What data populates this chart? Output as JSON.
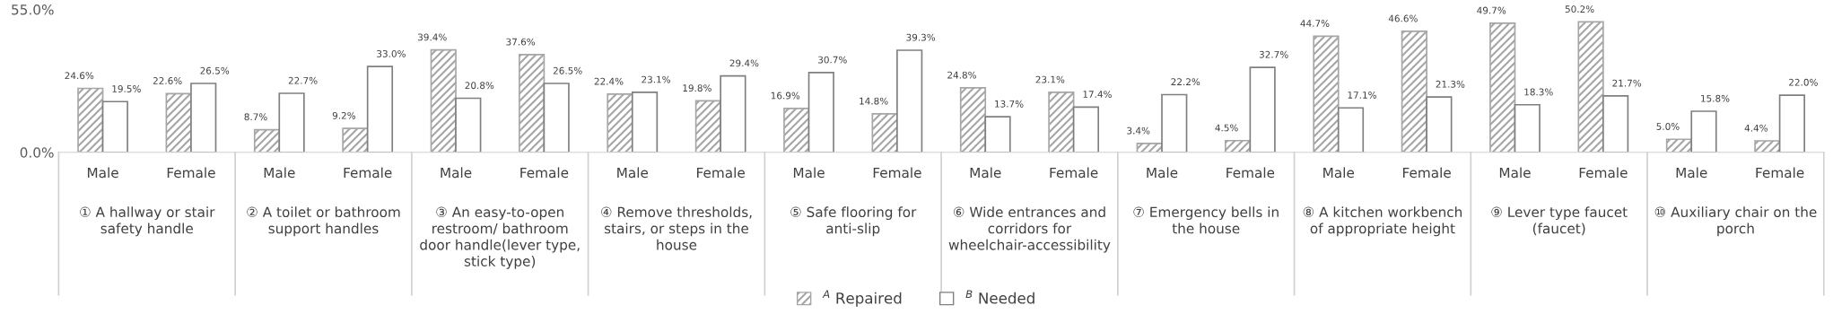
{
  "chart_data": {
    "type": "bar",
    "categories": [
      "Male",
      "Female",
      "Male",
      "Female",
      "Male",
      "Female",
      "Male",
      "Female",
      "Male",
      "Female",
      "Male",
      "Female",
      "Male",
      "Female",
      "Male",
      "Female",
      "Male",
      "Female",
      "Male",
      "Female"
    ],
    "series": [
      {
        "name": "$^{A}$ Repaired",
        "color": "#a6a6a6",
        "values": [
          24.6,
          22.6,
          8.7,
          9.2,
          39.4,
          37.6,
          22.4,
          19.8,
          16.9,
          14.8,
          24.8,
          23.1,
          3.4,
          4.5,
          44.7,
          46.6,
          49.7,
          50.2,
          5.0,
          4.4
        ],
        "value_labels": [
          "24.6%",
          "22.6%",
          "8.7%",
          "9.2%",
          "39.4%",
          "37.6%",
          "22.4%",
          "19.8%",
          "16.9%",
          "14.8%",
          "24.8%",
          "23.1%",
          "3.4%",
          "4.5%",
          "44.7%",
          "46.6%",
          "49.7%",
          "50.2%",
          "5.0%",
          "4.4%"
        ]
      },
      {
        "name": "$^{B}$ Needed",
        "color": "#ffffff",
        "values": [
          19.5,
          26.5,
          22.7,
          33.0,
          20.8,
          26.5,
          23.1,
          29.4,
          30.7,
          39.3,
          13.7,
          17.4,
          22.2,
          32.7,
          17.1,
          21.3,
          18.3,
          21.7,
          15.8,
          22.0
        ],
        "value_labels": [
          "19.5%",
          "26.5%",
          "22.7%",
          "33.0%",
          "20.8%",
          "26.5%",
          "23.1%",
          "29.4%",
          "30.7%",
          "39.3%",
          "13.7%",
          "17.4%",
          "22.2%",
          "32.7%",
          "17.1%",
          "21.3%",
          "18.3%",
          "21.7%",
          "15.8%",
          "22.0%"
        ]
      }
    ],
    "annotations": [
      "① A hallway or stair safety handle",
      "② A toilet or bathroom support handles",
      "③ An easy-to-open restroom/ bathroom door handle(lever type, stick type)",
      "④ Remove thresholds, stairs, or steps in the house",
      "⑤ Safe flooring for anti-slip",
      "⑥ Wide entrances and corridors for wheelchair-accessibility",
      "⑦ Emergency bells in the house",
      "⑧ A kitchen workbench of appropriate height",
      "⑨ Lever type faucet (faucet)",
      "⑩ Auxiliary chair on the porch"
    ],
    "ylim": [
      0,
      55
    ],
    "yticks": [
      {
        "value": 0,
        "label": "0.0%"
      },
      {
        "value": 55,
        "label": "55.0%"
      }
    ],
    "grid": false,
    "legend": "bottom"
  }
}
